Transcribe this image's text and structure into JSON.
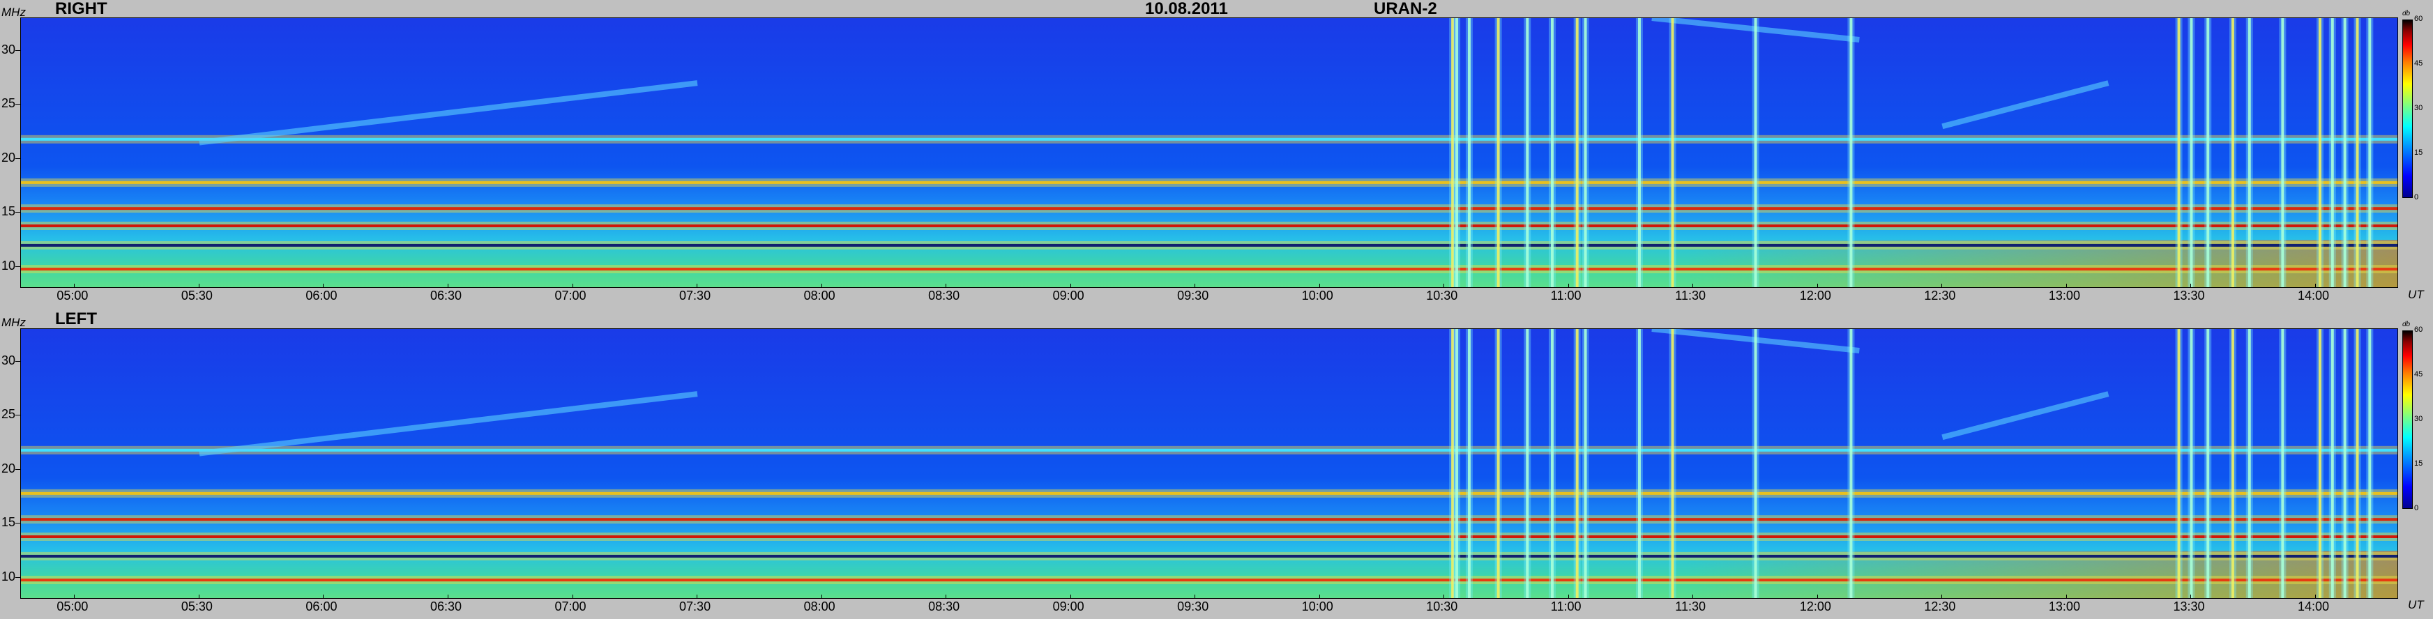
{
  "header": {
    "date": "10.08.2011",
    "observatory": "URAN-2"
  },
  "chart_data": [
    {
      "type": "heatmap",
      "title": "RIGHT",
      "ylabel": "MHz",
      "xlabel": "UT",
      "y_ticks": [
        "10",
        "15",
        "20",
        "25",
        "30"
      ],
      "x_ticks": [
        "05:00",
        "05:30",
        "06:00",
        "06:30",
        "07:00",
        "07:30",
        "08:00",
        "08:30",
        "09:00",
        "09:30",
        "10:00",
        "10:30",
        "11:00",
        "11:30",
        "12:00",
        "12:30",
        "13:00",
        "13:30",
        "14:00"
      ],
      "xlim": [
        "04:47",
        "14:20"
      ],
      "ylim": [
        8,
        33
      ],
      "colorbar": {
        "unit": "db",
        "ticks": [
          "60",
          "45",
          "30",
          "15",
          "0"
        ],
        "range": [
          0,
          60
        ]
      },
      "features": {
        "rfi_bands_mhz": [
          9.8,
          12.0,
          13.8,
          15.4,
          17.8,
          21.8
        ],
        "drifting_bands": [
          {
            "start": "05:30",
            "end": "07:30",
            "f_start": 21.5,
            "f_end": 27
          },
          {
            "start": "11:20",
            "end": "12:10",
            "f_start": 33,
            "f_end": 31
          },
          {
            "start": "12:30",
            "end": "13:10",
            "f_start": 23,
            "f_end": 27
          }
        ],
        "broadband_bursts": [
          "10:32",
          "10:33",
          "10:36",
          "10:43",
          "10:50",
          "10:56",
          "11:02",
          "11:04",
          "11:17",
          "11:25",
          "11:45",
          "12:08",
          "13:27",
          "13:30",
          "13:34",
          "13:40",
          "13:44",
          "13:52",
          "14:01",
          "14:04",
          "14:07",
          "14:10",
          "14:13"
        ]
      }
    },
    {
      "type": "heatmap",
      "title": "LEFT",
      "ylabel": "MHz",
      "xlabel": "UT",
      "y_ticks": [
        "10",
        "15",
        "20",
        "25",
        "30"
      ],
      "x_ticks": [
        "05:00",
        "05:30",
        "06:00",
        "06:30",
        "07:00",
        "07:30",
        "08:00",
        "08:30",
        "09:00",
        "09:30",
        "10:00",
        "10:30",
        "11:00",
        "11:30",
        "12:00",
        "12:30",
        "13:00",
        "13:30",
        "14:00"
      ],
      "xlim": [
        "04:47",
        "14:20"
      ],
      "ylim": [
        8,
        33
      ],
      "colorbar": {
        "unit": "db",
        "ticks": [
          "60",
          "45",
          "30",
          "15",
          "0"
        ],
        "range": [
          0,
          60
        ]
      },
      "features": {
        "rfi_bands_mhz": [
          9.8,
          12.0,
          13.8,
          15.4,
          17.8,
          21.8
        ],
        "drifting_bands": [
          {
            "start": "05:30",
            "end": "07:30",
            "f_start": 21.5,
            "f_end": 27
          },
          {
            "start": "11:20",
            "end": "12:10",
            "f_start": 33,
            "f_end": 31
          },
          {
            "start": "12:30",
            "end": "13:10",
            "f_start": 23,
            "f_end": 27
          }
        ],
        "broadband_bursts": [
          "10:32",
          "10:33",
          "10:36",
          "10:43",
          "10:50",
          "10:56",
          "11:02",
          "11:04",
          "11:17",
          "11:25",
          "11:45",
          "12:08",
          "13:27",
          "13:30",
          "13:34",
          "13:40",
          "13:44",
          "13:52",
          "14:01",
          "14:04",
          "14:07",
          "14:10",
          "14:13"
        ]
      }
    }
  ]
}
